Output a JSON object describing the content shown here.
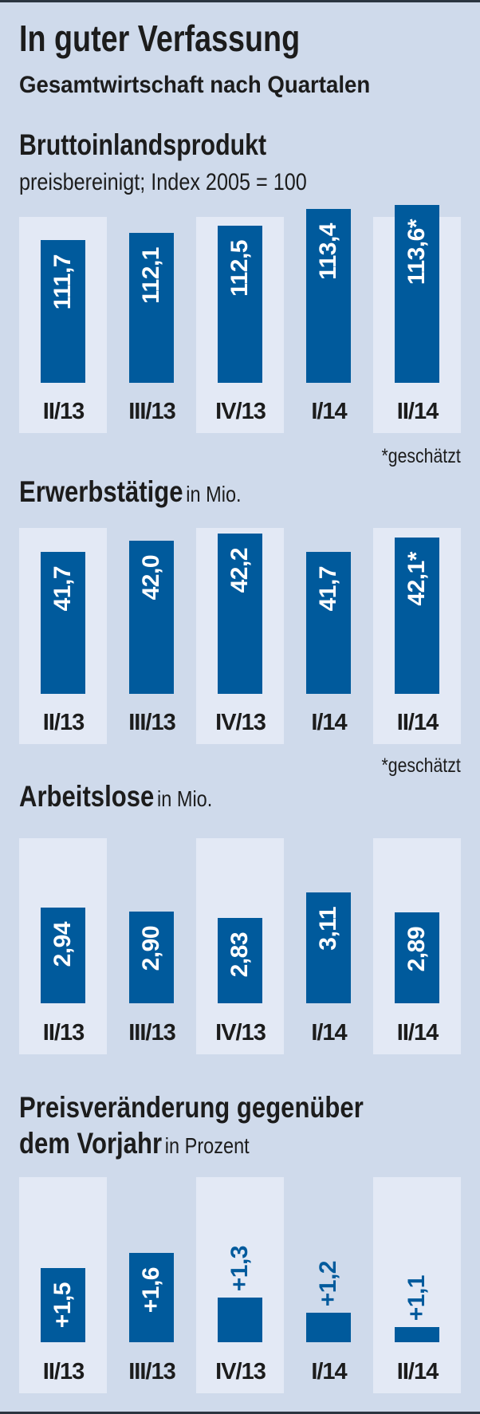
{
  "header": {
    "title": "In guter Verfassung",
    "subtitle": "Gesamtwirtschaft nach Quartalen"
  },
  "colors": {
    "background": "#cfdaeb",
    "band": "#e3e9f5",
    "bar": "#005a9c",
    "text": "#1c1c1c"
  },
  "chart_data": [
    {
      "type": "bar",
      "title": "Bruttoinlandsprodukt",
      "unit": "",
      "subtitle": "preisbereinigt; Index 2005 = 100",
      "categories": [
        "II/13",
        "III/13",
        "IV/13",
        "I/14",
        "II/14"
      ],
      "values": [
        111.7,
        112.1,
        112.5,
        113.4,
        113.6
      ],
      "labels": [
        "111,7",
        "112,1",
        "112,5",
        "113,4",
        "113,6*"
      ],
      "footnote": "*geschätzt"
    },
    {
      "type": "bar",
      "title": "Erwerbstätige",
      "unit": "in Mio.",
      "categories": [
        "II/13",
        "III/13",
        "IV/13",
        "I/14",
        "II/14"
      ],
      "values": [
        41.7,
        42.0,
        42.2,
        41.7,
        42.1
      ],
      "labels": [
        "41,7",
        "42,0",
        "42,2",
        "41,7",
        "42,1*"
      ],
      "footnote": "*geschätzt"
    },
    {
      "type": "bar",
      "title": "Arbeitslose",
      "unit": "in Mio.",
      "categories": [
        "II/13",
        "III/13",
        "IV/13",
        "I/14",
        "II/14"
      ],
      "values": [
        2.94,
        2.9,
        2.83,
        3.11,
        2.89
      ],
      "labels": [
        "2,94",
        "2,90",
        "2,83",
        "3,11",
        "2,89"
      ]
    },
    {
      "type": "bar",
      "title_line1": "Preisveränderung gegenüber",
      "title_line2": "dem Vorjahr",
      "unit": "in Prozent",
      "categories": [
        "II/13",
        "III/13",
        "IV/13",
        "I/14",
        "II/14"
      ],
      "values": [
        1.5,
        1.6,
        1.3,
        1.2,
        1.1
      ],
      "labels": [
        "+1,5",
        "+1,6",
        "+1,3",
        "+1,2",
        "+1,1"
      ]
    }
  ]
}
